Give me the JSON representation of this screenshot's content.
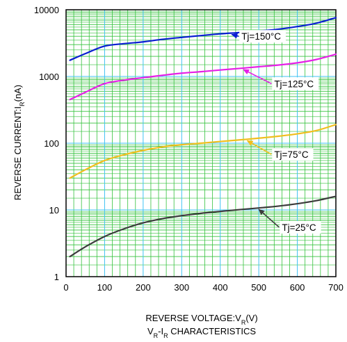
{
  "chart_data": {
    "type": "line",
    "title": "",
    "caption_main": "V",
    "caption_sub1": "R",
    "caption_mid": "-I",
    "caption_sub2": "R",
    "caption_tail": " CHARACTERISTICS",
    "xlabel_main": "REVERSE VOLTAGE:V",
    "xlabel_sub": "R",
    "xlabel_tail": "(V)",
    "ylabel_main": "REVERSE CURRENT:I",
    "ylabel_sub": "R",
    "ylabel_tail": "(nA)",
    "xlim": [
      0,
      700
    ],
    "ylim": [
      1,
      10000
    ],
    "yscale": "log",
    "grid": true,
    "x_ticks": [
      "0",
      "100",
      "200",
      "300",
      "400",
      "500",
      "600",
      "700"
    ],
    "y_ticks": [
      "1",
      "10",
      "100",
      "1000",
      "10000"
    ],
    "colors": {
      "grid_major": "#3fc3f3",
      "grid_minor": "#34c23c",
      "background": "#ffffff"
    },
    "series": [
      {
        "name": "Tj=150°C",
        "color": "#0a1ed2",
        "x": [
          10,
          50,
          100,
          150,
          200,
          250,
          300,
          350,
          400,
          450,
          500,
          550,
          600,
          650,
          700
        ],
        "y": [
          1750,
          2200,
          2850,
          3100,
          3300,
          3600,
          3850,
          4100,
          4350,
          4550,
          4800,
          5100,
          5600,
          6300,
          7600
        ]
      },
      {
        "name": "Tj=125°C",
        "color": "#e620e6",
        "x": [
          10,
          50,
          100,
          150,
          200,
          250,
          300,
          350,
          400,
          450,
          500,
          550,
          600,
          650,
          700
        ],
        "y": [
          450,
          580,
          780,
          880,
          960,
          1040,
          1120,
          1180,
          1250,
          1320,
          1400,
          1480,
          1600,
          1800,
          2150
        ]
      },
      {
        "name": "Tj=75°C",
        "color": "#f0be1e",
        "x": [
          10,
          50,
          100,
          150,
          200,
          250,
          300,
          350,
          400,
          450,
          500,
          550,
          600,
          650,
          700
        ],
        "y": [
          30,
          40,
          55,
          67,
          78,
          88,
          95,
          100,
          106,
          112,
          119,
          127,
          138,
          155,
          190
        ]
      },
      {
        "name": "Tj=25°C",
        "color": "#3c3c3c",
        "x": [
          10,
          50,
          100,
          150,
          200,
          250,
          300,
          350,
          400,
          450,
          500,
          550,
          600,
          650,
          700
        ],
        "y": [
          2,
          2.8,
          4,
          5.2,
          6.4,
          7.4,
          8.2,
          8.9,
          9.5,
          10.1,
          10.7,
          11.4,
          12.4,
          13.8,
          16
        ]
      }
    ],
    "annotations": [
      {
        "text": "Tj=150°C",
        "series": 0,
        "at_x": 430,
        "text_x": 455,
        "text_y": 4000,
        "label_color": "#000000"
      },
      {
        "text": "Tj=125°C",
        "series": 1,
        "at_x": 460,
        "text_x": 540,
        "text_y": 780,
        "label_color": "#000000"
      },
      {
        "text": "Tj=75°C",
        "series": 2,
        "at_x": 470,
        "text_x": 540,
        "text_y": 68,
        "label_color": "#000000"
      },
      {
        "text": "Tj=25°C",
        "series": 3,
        "at_x": 500,
        "text_x": 560,
        "text_y": 5.5,
        "label_color": "#000000"
      }
    ]
  }
}
